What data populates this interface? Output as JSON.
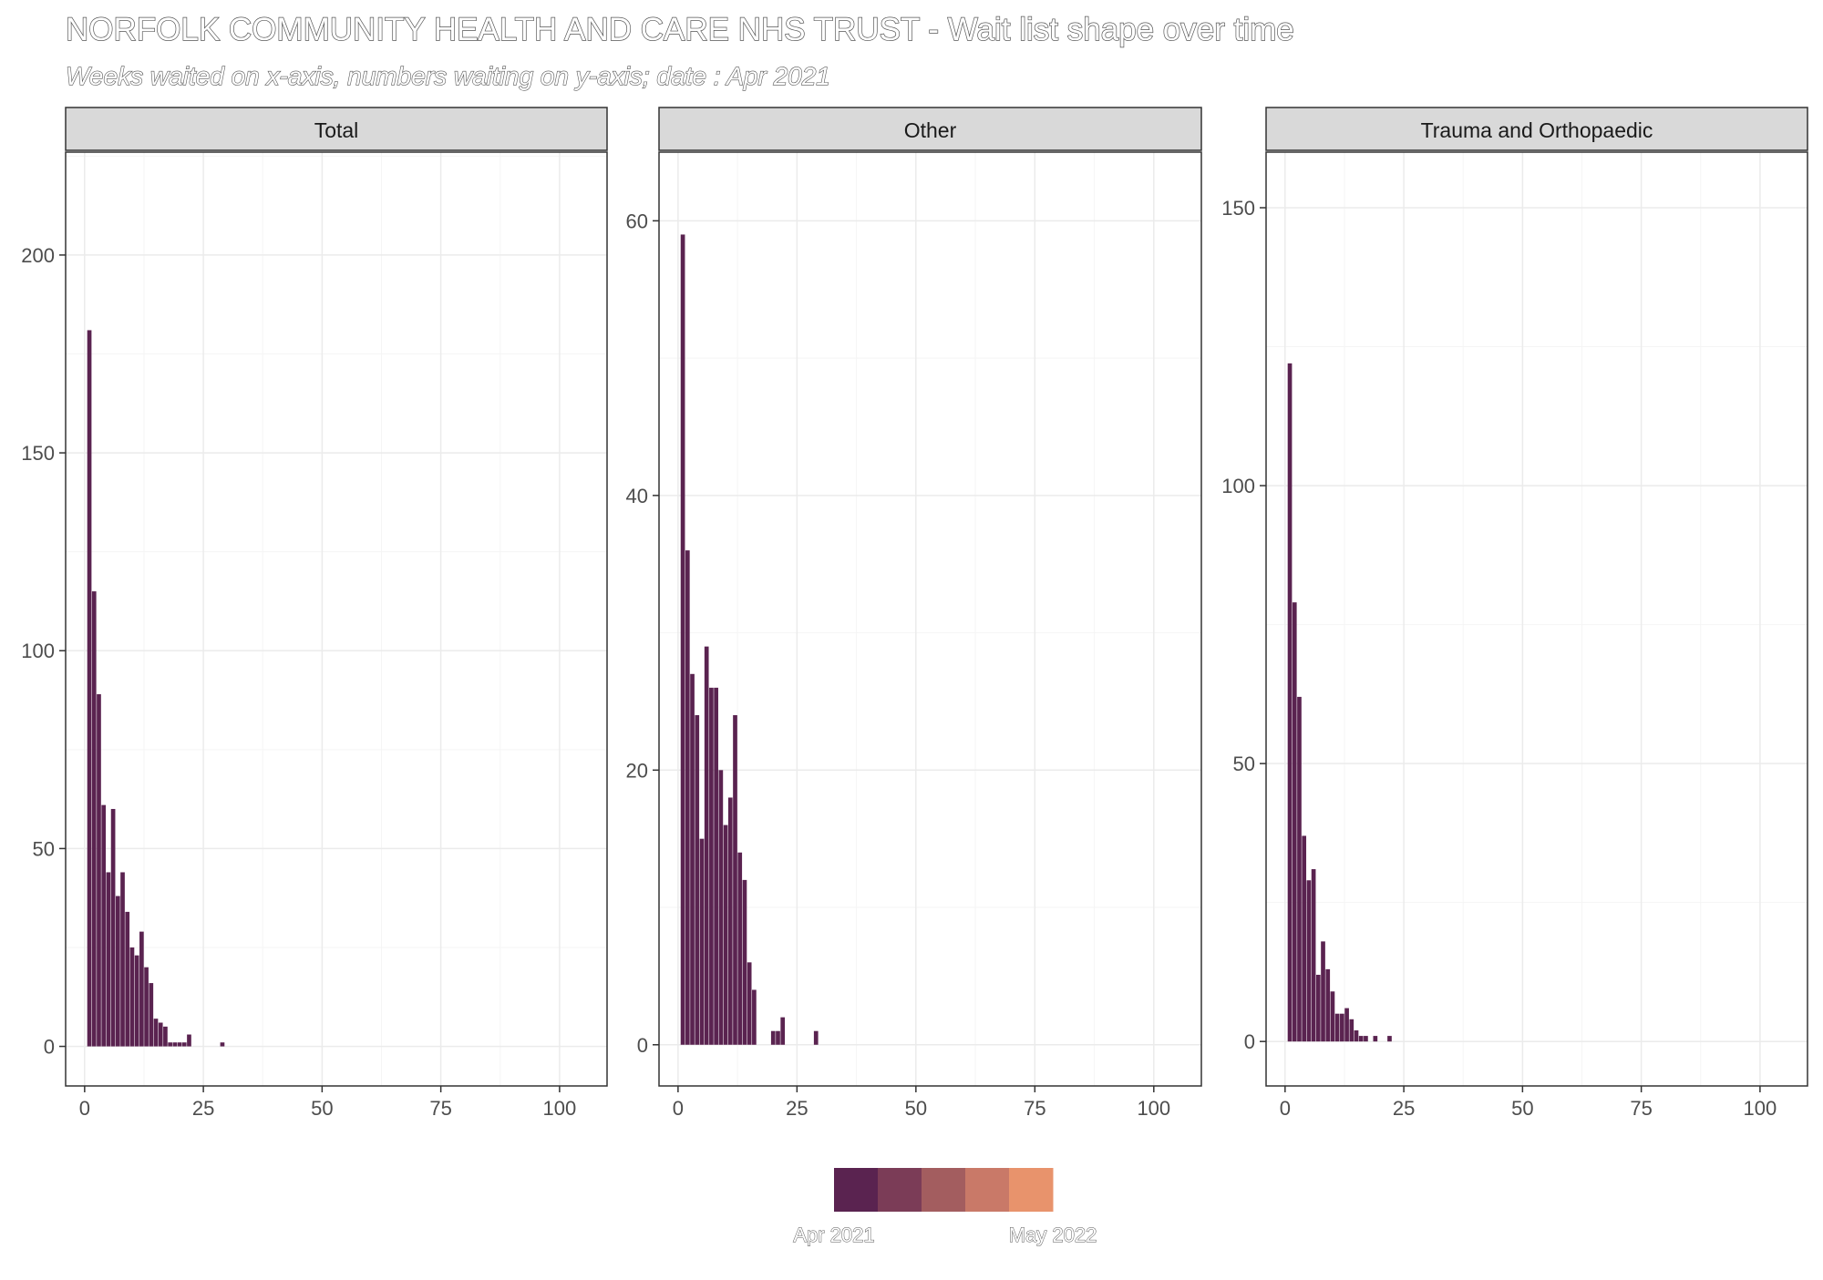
{
  "title": "NORFOLK COMMUNITY HEALTH AND CARE NHS TRUST - Wait list shape over time",
  "subtitle": "Weeks waited on x-axis, numbers waiting on y-axis; date : Apr 2021",
  "colors": {
    "bar": "#5a2350",
    "panel_border": "#333333",
    "strip_fill": "#d9d9d9",
    "grid_major": "#ebebeb",
    "grid_minor": "#f5f5f5"
  },
  "legend": {
    "start_label": "Apr 2021",
    "end_label": "May 2022",
    "colors": [
      "#5a2350",
      "#7b3c57",
      "#a35d5f",
      "#c97968",
      "#e8936c"
    ]
  },
  "chart_data": [
    {
      "type": "bar",
      "panel": "Total",
      "xlabel": "",
      "ylabel": "",
      "xlim": [
        -4,
        110
      ],
      "ylim": [
        -10,
        226
      ],
      "x_ticks": [
        0,
        25,
        50,
        75,
        100
      ],
      "y_ticks": [
        0,
        50,
        100,
        150,
        200
      ],
      "x": [
        1,
        2,
        3,
        4,
        5,
        6,
        7,
        8,
        9,
        10,
        11,
        12,
        13,
        14,
        15,
        16,
        17,
        18,
        19,
        20,
        21,
        22,
        29
      ],
      "values": [
        181,
        115,
        89,
        61,
        44,
        60,
        38,
        44,
        34,
        25,
        23,
        29,
        20,
        16,
        7,
        6,
        5,
        1,
        1,
        1,
        1,
        3,
        1
      ]
    },
    {
      "type": "bar",
      "panel": "Other",
      "xlabel": "",
      "ylabel": "",
      "xlim": [
        -4,
        110
      ],
      "ylim": [
        -3,
        65
      ],
      "x_ticks": [
        0,
        25,
        50,
        75,
        100
      ],
      "y_ticks": [
        0,
        20,
        40,
        60
      ],
      "x": [
        1,
        2,
        3,
        4,
        5,
        6,
        7,
        8,
        9,
        10,
        11,
        12,
        13,
        14,
        15,
        16,
        20,
        21,
        22,
        29
      ],
      "values": [
        59,
        36,
        27,
        24,
        15,
        29,
        26,
        26,
        20,
        16,
        18,
        24,
        14,
        12,
        6,
        4,
        1,
        1,
        2,
        1
      ]
    },
    {
      "type": "bar",
      "panel": "Trauma and Orthopaedic",
      "xlabel": "",
      "ylabel": "",
      "xlim": [
        -4,
        110
      ],
      "ylim": [
        -8,
        160
      ],
      "x_ticks": [
        0,
        25,
        50,
        75,
        100
      ],
      "y_ticks": [
        0,
        50,
        100,
        150
      ],
      "x": [
        1,
        2,
        3,
        4,
        5,
        6,
        7,
        8,
        9,
        10,
        11,
        12,
        13,
        14,
        15,
        16,
        17,
        19,
        22
      ],
      "values": [
        122,
        79,
        62,
        37,
        29,
        31,
        12,
        18,
        13,
        9,
        5,
        5,
        6,
        4,
        2,
        1,
        1,
        1,
        1
      ]
    }
  ]
}
